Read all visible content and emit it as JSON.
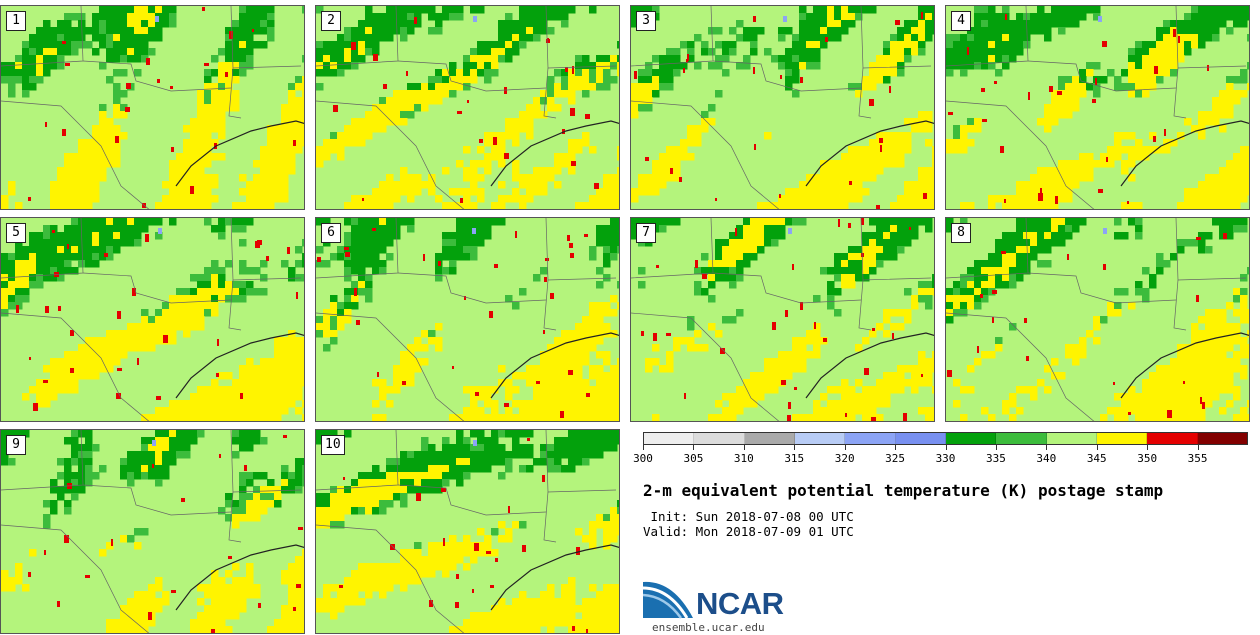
{
  "stamps": [
    "1",
    "2",
    "3",
    "4",
    "5",
    "6",
    "7",
    "8",
    "9",
    "10"
  ],
  "colorbar": {
    "colors": [
      "#eeeeee",
      "#dcdcdc",
      "#aaaaaa",
      "#b8ccf5",
      "#8ca4f5",
      "#7890f0",
      "#03a10c",
      "#3cbc3c",
      "#b4f47c",
      "#fff400",
      "#e40000",
      "#820000"
    ],
    "labels": [
      "300",
      "305",
      "310",
      "315",
      "320",
      "325",
      "330",
      "335",
      "340",
      "345",
      "350",
      "355"
    ]
  },
  "title": "2-m equivalent potential temperature (K) postage stamp",
  "init_line": " Init: Sun 2018-07-08 00 UTC",
  "valid_line": "Valid: Mon 2018-07-09 01 UTC",
  "logo_text": "NCAR",
  "website": "ensemble.ucar.edu"
}
